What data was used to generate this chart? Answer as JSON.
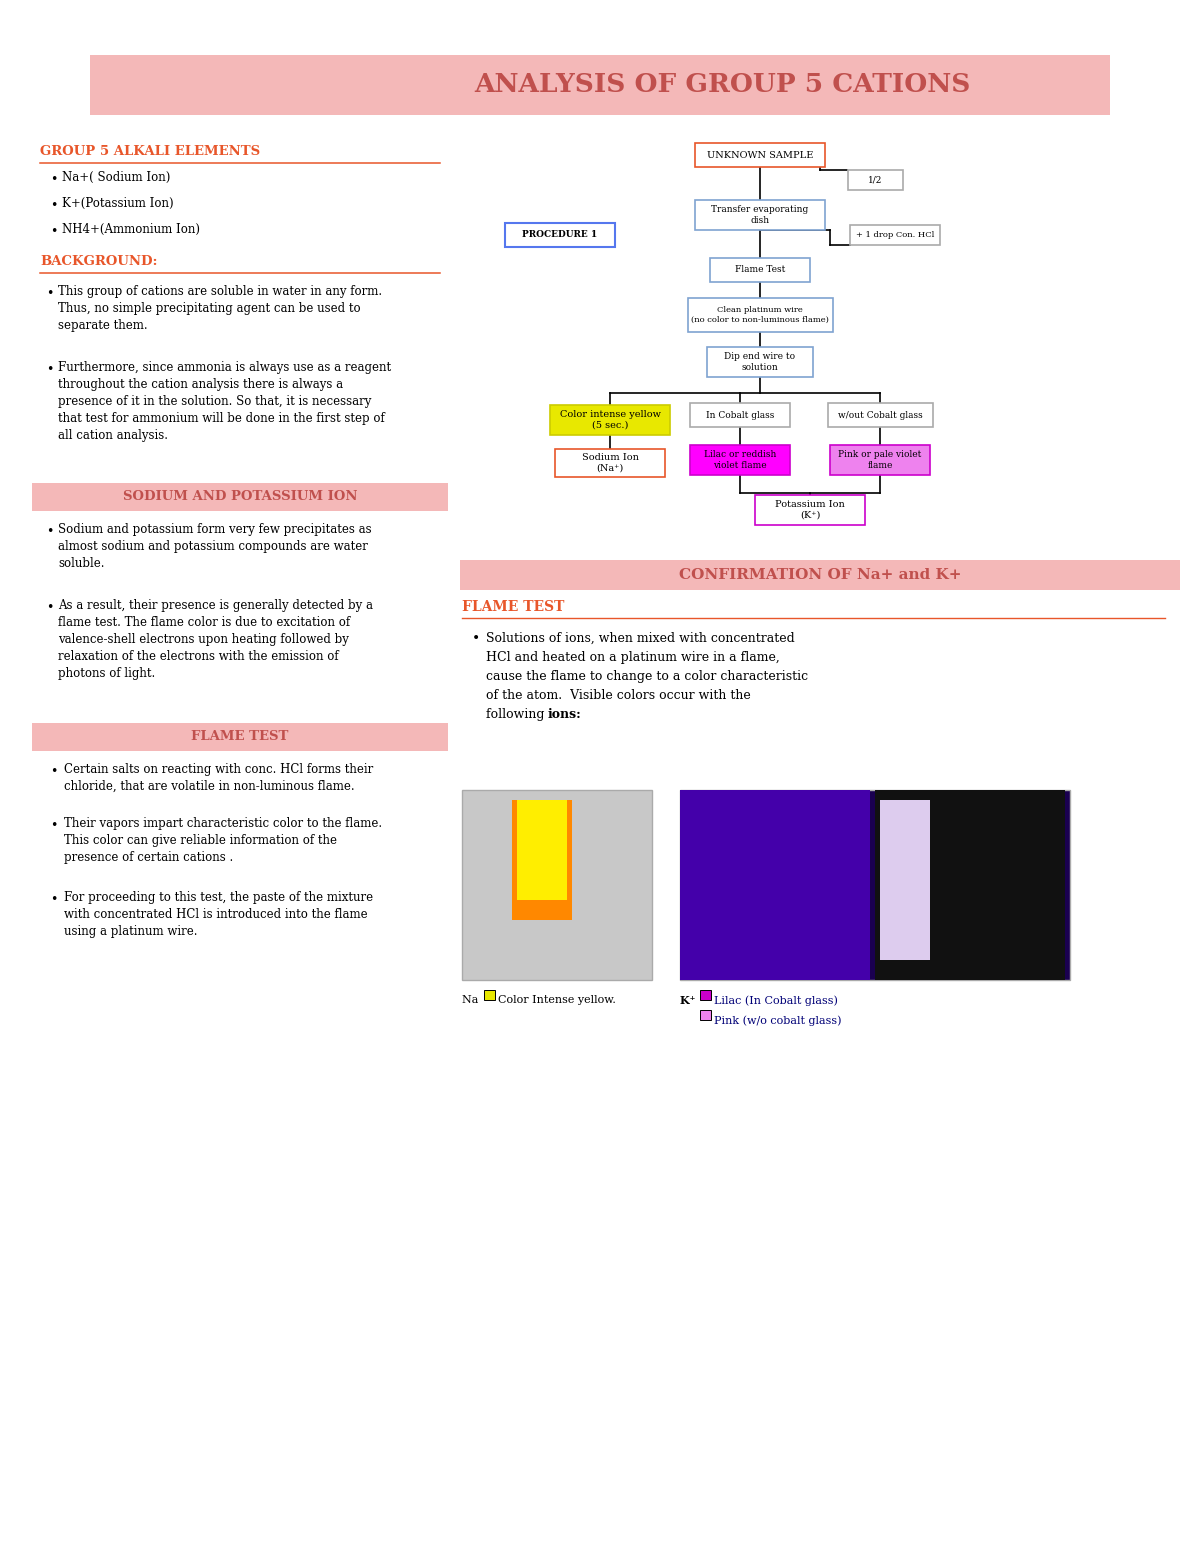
{
  "title": "ANALYSIS OF GROUP 5 CATIONS",
  "title_bg": "#f4b8b8",
  "title_color": "#c0504d",
  "page_bg": "#ffffff",
  "heading_color": "#e8562a",
  "line_color": "#e8562a",
  "s1_heading": "GROUP 5 ALKALI ELEMENTS",
  "s1_bullets": [
    "Na+( Sodium Ion)",
    "K+(Potassium Ion)",
    "NH4+(Ammonium Ion)"
  ],
  "s2_heading": "BACKGROUND:",
  "s2_bullets": [
    "This group of cations are soluble in water in any form.\nThus, no simple precipitating agent can be used to\nseparate them.",
    "Furthermore, since ammonia is always use as a reagent\nthroughout the cation analysis there is always a\npresence of it in the solution. So that, it is necessary\nthat test for ammonium will be done in the first step of\nall cation analysis."
  ],
  "s3_heading": "SODIUM AND POTASSIUM ION",
  "s3_bg": "#f4b8b8",
  "s3_color": "#c0504d",
  "s3_bullets": [
    "Sodium and potassium form very few precipitates as\nalmost sodium and potassium compounds are water\nsoluble.",
    "As a result, their presence is generally detected by a\nflame test. The flame color is due to excitation of\nvalence-shell electrons upon heating followed by\nrelaxation of the electrons with the emission of\nphotons of light."
  ],
  "s4_heading": "FLAME TEST",
  "s4_bg": "#f4b8b8",
  "s4_color": "#c0504d",
  "s4_bullets": [
    "Certain salts on reacting with conc. HCl forms their\nchloride, that are volatile in non-luminous flame.",
    "Their vapors impart characteristic color to the flame.\nThis color can give reliable information of the\npresence of certain cations .",
    "For proceeding to this test, the paste of the mixture\nwith concentrated HCl is introduced into the flame\nusing a platinum wire."
  ],
  "conf_heading": "CONFIRMATION OF Na+ and K+",
  "conf_bg": "#f4b8b8",
  "conf_color": "#c0504d",
  "ft_heading": "FLAME TEST",
  "ft_color": "#e8562a",
  "ft_text_line1": "Solutions of ions, when mixed with concentrated",
  "ft_text_line2": "HCl and heated on a platinum wire in a flame,",
  "ft_text_line3": "cause the flame to change to a color characteristic",
  "ft_text_line4": "of the atom.  Visible colors occur with the",
  "ft_text_line5": "following ",
  "ft_bold": "ions:",
  "na_cap": "Na ",
  "na_cap2": "Color Intense yellow.",
  "k_cap_bold": "K⁺ ",
  "k_cap1": "Lilac (In Cobalt glass)",
  "k_cap2": "Pink (w/o cobalt glass)"
}
